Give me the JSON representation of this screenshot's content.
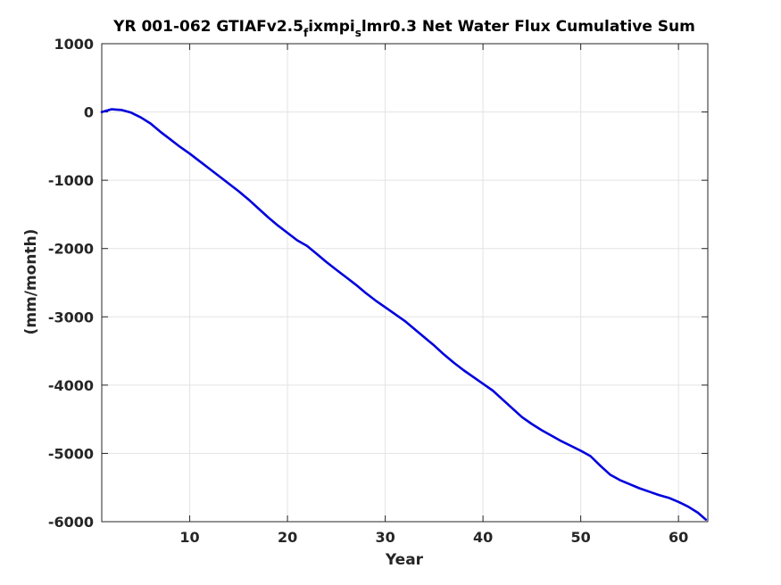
{
  "chart_data": {
    "type": "line",
    "title": {
      "part1": "YR 001-062 GTIAFv2.5",
      "sub1": "f",
      "part2": "ixmpi",
      "sub2": "s",
      "part3": "lmr0.3 Net Water Flux Cumulative Sum"
    },
    "xlabel": "Year",
    "ylabel": "(mm/month)",
    "xlim": [
      1,
      63
    ],
    "ylim": [
      -6000,
      1000
    ],
    "xticks": [
      10,
      20,
      30,
      40,
      50,
      60
    ],
    "yticks": [
      1000,
      0,
      -1000,
      -2000,
      -3000,
      -4000,
      -5000,
      -6000
    ],
    "grid": true,
    "colors": {
      "line": "#0000dd",
      "grid": "#e3e3e3",
      "axis": "#262626"
    },
    "series": [
      {
        "x": [
          1,
          2,
          3,
          4,
          5,
          6,
          7,
          8,
          9,
          10,
          11,
          12,
          13,
          14,
          15,
          16,
          17,
          18,
          19,
          20,
          21,
          22,
          23,
          24,
          25,
          26,
          27,
          28,
          29,
          30,
          31,
          32,
          33,
          34,
          35,
          36,
          37,
          38,
          39,
          40,
          41,
          42,
          43,
          44,
          45,
          46,
          47,
          48,
          49,
          50,
          51,
          52,
          53,
          54,
          55,
          56,
          57,
          58,
          59,
          60,
          61,
          62,
          62.8
        ],
        "values": [
          0,
          40,
          30,
          -10,
          -80,
          -170,
          -290,
          -400,
          -510,
          -610,
          -720,
          -830,
          -940,
          -1050,
          -1160,
          -1280,
          -1410,
          -1540,
          -1660,
          -1770,
          -1880,
          -1960,
          -2080,
          -2200,
          -2310,
          -2420,
          -2530,
          -2650,
          -2760,
          -2860,
          -2960,
          -3060,
          -3180,
          -3300,
          -3420,
          -3550,
          -3670,
          -3780,
          -3880,
          -3980,
          -4080,
          -4210,
          -4340,
          -4470,
          -4570,
          -4660,
          -4740,
          -4820,
          -4890,
          -4960,
          -5040,
          -5180,
          -5310,
          -5390,
          -5450,
          -5510,
          -5560,
          -5610,
          -5650,
          -5710,
          -5780,
          -5870,
          -5970
        ]
      }
    ]
  }
}
